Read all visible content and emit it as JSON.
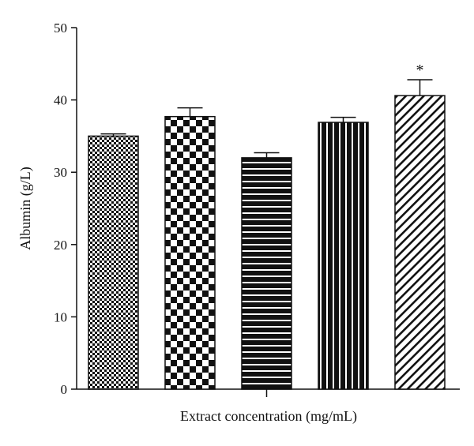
{
  "chart_data": {
    "type": "bar",
    "title": "",
    "xlabel": "Extract concentration (mg/mL)",
    "ylabel": "Albumin (g/L)",
    "ylim": [
      0,
      50
    ],
    "yticks": [
      "0",
      "10",
      "20",
      "30",
      "40",
      "50"
    ],
    "grid": false,
    "categories": [
      "",
      "",
      "",
      "",
      ""
    ],
    "values": [
      35.0,
      37.7,
      32.0,
      36.9,
      40.6
    ],
    "errors": [
      0.3,
      1.2,
      0.7,
      0.7,
      2.2
    ],
    "patterns": [
      "fine-checker",
      "coarse-checker",
      "horizontal-stripes",
      "vertical-stripes",
      "diagonal-stripes"
    ],
    "annotations": [
      "",
      "",
      "",
      "",
      "*"
    ],
    "colors": {
      "ink": "#111111",
      "fill": "#ffffff"
    }
  }
}
